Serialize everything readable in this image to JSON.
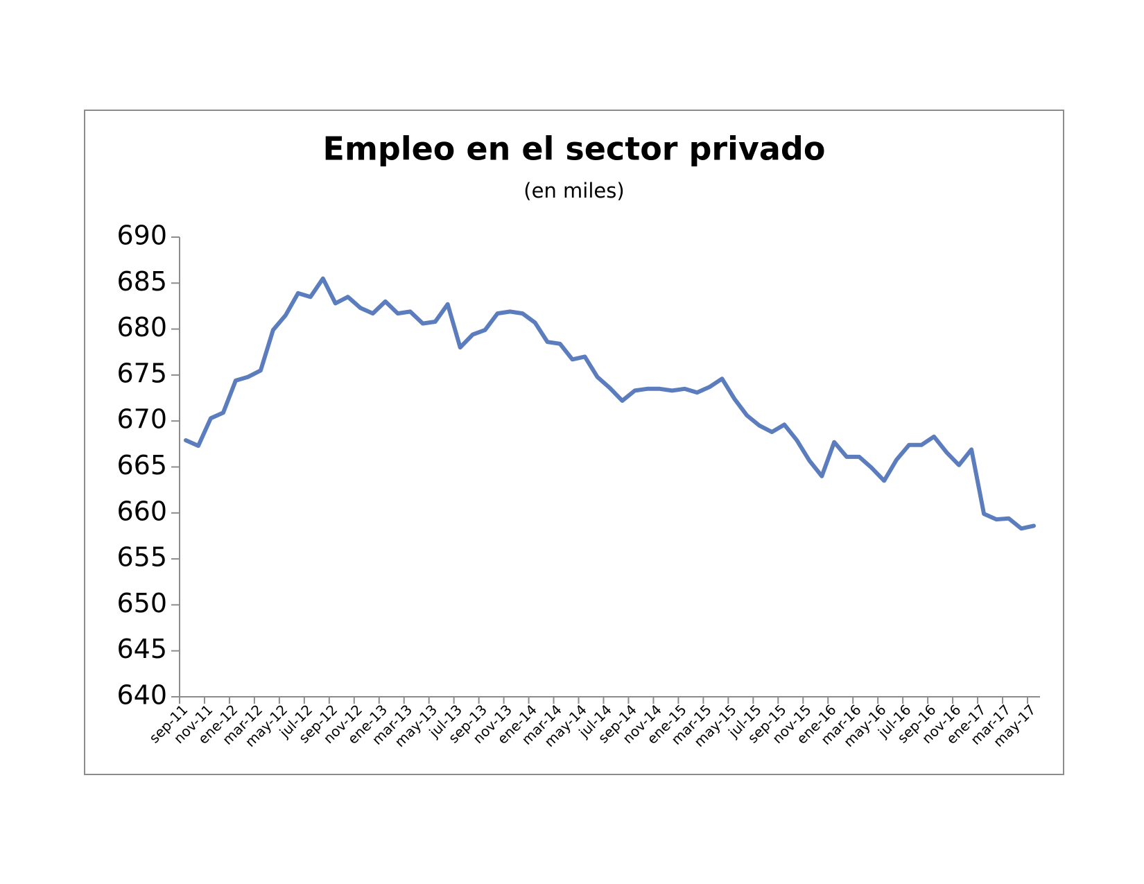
{
  "chart_data": {
    "type": "line",
    "title": "Empleo en el sector privado",
    "subtitle": "(en miles)",
    "categories": [
      "sep-11",
      null,
      "nov-11",
      null,
      "ene-12",
      null,
      "mar-12",
      null,
      "may-12",
      null,
      "jul-12",
      null,
      "sep-12",
      null,
      "nov-12",
      null,
      "ene-13",
      null,
      "mar-13",
      null,
      "may-13",
      null,
      "jul-13",
      null,
      "sep-13",
      null,
      "nov-13",
      null,
      "ene-14",
      null,
      "mar-14",
      null,
      "may-14",
      null,
      "jul-14",
      null,
      "sep-14",
      null,
      "nov-14",
      null,
      "ene-15",
      null,
      "mar-15",
      null,
      "may-15",
      null,
      "jul-15",
      null,
      "sep-15",
      null,
      "nov-15",
      null,
      "ene-16",
      null,
      "mar-16",
      null,
      "may-16",
      null,
      "jul-16",
      null,
      "sep-16",
      null,
      "nov-16",
      null,
      "ene-17",
      null,
      "mar-17",
      null,
      "may-17"
    ],
    "values": [
      667.9,
      667.3,
      670.3,
      670.9,
      674.4,
      674.8,
      675.5,
      679.9,
      681.5,
      683.9,
      683.5,
      685.5,
      682.8,
      683.5,
      682.3,
      681.7,
      683.0,
      681.7,
      681.9,
      680.6,
      680.8,
      682.7,
      678.0,
      679.4,
      679.9,
      681.7,
      681.9,
      681.7,
      680.7,
      678.6,
      678.4,
      676.7,
      677.0,
      674.8,
      673.6,
      672.2,
      673.3,
      673.5,
      673.5,
      673.3,
      673.5,
      673.1,
      673.7,
      674.6,
      672.4,
      670.6,
      669.5,
      668.8,
      669.6,
      667.9,
      665.7,
      664.0,
      667.7,
      666.1,
      666.1,
      664.9,
      663.5,
      665.8,
      667.4,
      667.4,
      668.3,
      666.6,
      665.2,
      666.9,
      659.9,
      659.3,
      659.4,
      658.3,
      658.6
    ],
    "color": "#5b7dbd",
    "ylim": [
      640,
      690
    ],
    "yticks": [
      640,
      645,
      650,
      655,
      660,
      665,
      670,
      675,
      680,
      685,
      690
    ],
    "grid": false
  }
}
